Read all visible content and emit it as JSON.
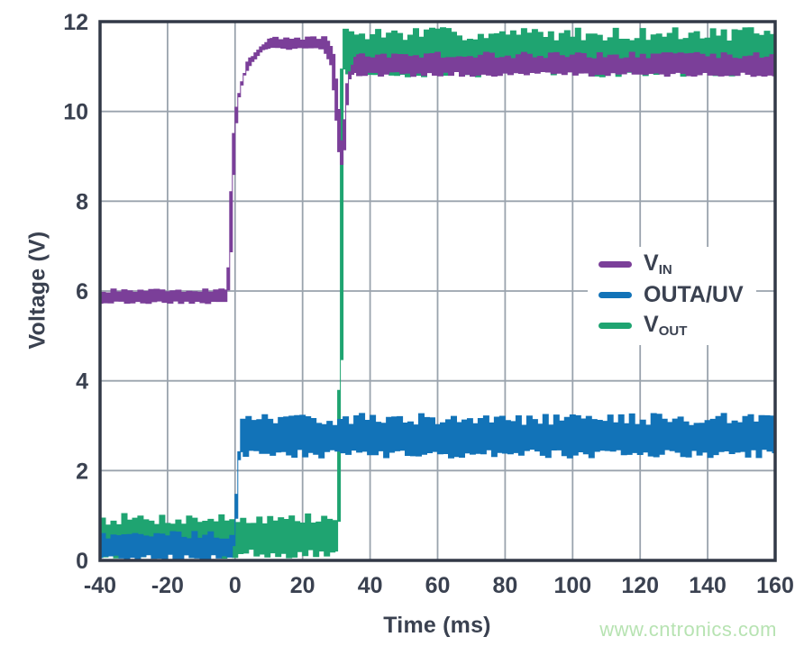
{
  "page": {
    "background": "#ffffff"
  },
  "axes": {
    "x_title": "Time (ms)",
    "y_title": "Voltage (V)"
  },
  "legend": {
    "items": [
      {
        "id": "vin",
        "main": "V",
        "sub": "IN",
        "color": "#7b3f99"
      },
      {
        "id": "outa-uv",
        "main": "OUTA/UV",
        "sub": "",
        "color": "#1273b8"
      },
      {
        "id": "vout",
        "main": "V",
        "sub": "OUT",
        "color": "#1fa471"
      }
    ]
  },
  "watermark": {
    "text": "www.cntronics.com",
    "color": "#b7e3b2"
  },
  "chart_data": {
    "type": "line",
    "title": "",
    "xlabel": "Time (ms)",
    "ylabel": "Voltage (V)",
    "xlim": [
      -40,
      160
    ],
    "ylim": [
      0,
      12
    ],
    "xticks": [
      -40,
      -20,
      0,
      20,
      40,
      60,
      80,
      100,
      120,
      140,
      160
    ],
    "yticks": [
      0,
      2,
      4,
      6,
      8,
      10,
      12
    ],
    "grid": true,
    "legend_position": "middle-right",
    "styles": {
      "grid_color": "#9aa3ad",
      "border_color": "#323947",
      "tick_color": "#3a4150",
      "background": "#ffffff"
    },
    "series_note": "points are [time_ms, voltage_center_V, noise_half_amplitude_V]; traces are noisy oscilloscope bands; draw order = array order (first is bottom layer)",
    "series": [
      {
        "name": "VOUT",
        "color": "#1fa471",
        "description": "Output voltage: ~0.55 V until ~31 ms, then steps up to ~11.3 V noisy band",
        "points": [
          [
            -40,
            0.55,
            0.5
          ],
          [
            30.9,
            0.55,
            0.5
          ],
          [
            31.8,
            11.32,
            0.55
          ],
          [
            160,
            11.32,
            0.55
          ]
        ]
      },
      {
        "name": "VIN",
        "color": "#7b3f99",
        "description": "Input voltage: ~5.9 V, ramps at t=0 to ~11.5 V plateau, transient dip to ~8.7 V at ~31 ms, settles ~11.05 V",
        "points": [
          [
            -40,
            5.88,
            0.17
          ],
          [
            -2,
            5.88,
            0.17
          ],
          [
            -1.2,
            7.5,
            0.2
          ],
          [
            -0.4,
            9.3,
            0.2
          ],
          [
            0.5,
            10.1,
            0.2
          ],
          [
            1.5,
            10.55,
            0.18
          ],
          [
            3,
            10.9,
            0.18
          ],
          [
            5,
            11.15,
            0.16
          ],
          [
            7,
            11.35,
            0.15
          ],
          [
            9,
            11.48,
            0.15
          ],
          [
            11,
            11.52,
            0.15
          ],
          [
            26.5,
            11.52,
            0.15
          ],
          [
            29,
            11.15,
            0.16
          ],
          [
            31,
            9.4,
            0.18
          ],
          [
            31.8,
            8.7,
            0.18
          ],
          [
            32.5,
            9.7,
            0.18
          ],
          [
            33.6,
            10.75,
            0.2
          ],
          [
            35.5,
            11.05,
            0.27
          ],
          [
            160,
            11.05,
            0.27
          ]
        ]
      },
      {
        "name": "OUTA/UV",
        "color": "#1273b8",
        "description": "Undervoltage flag output: ~0.3 V until t=0, then steps up to ~2.8 V noisy band",
        "points": [
          [
            -40,
            0.33,
            0.32
          ],
          [
            -0.2,
            0.33,
            0.32
          ],
          [
            1.4,
            2.78,
            0.5
          ],
          [
            160,
            2.78,
            0.5
          ]
        ]
      }
    ]
  }
}
